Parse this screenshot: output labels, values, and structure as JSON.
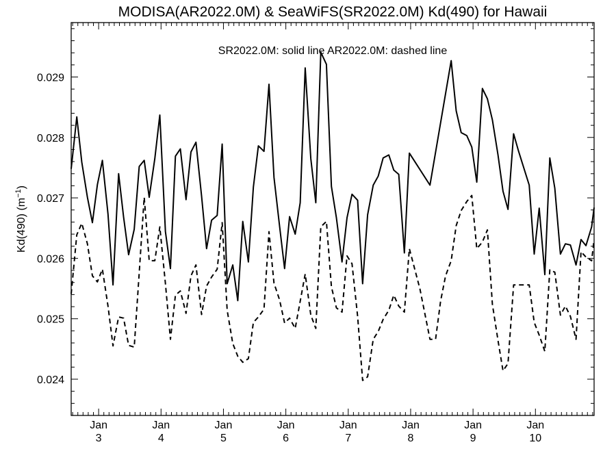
{
  "chart_data": {
    "type": "line",
    "title": "MODISA(AR2022.0M) & SeaWiFS(SR2022.0M)  Kd(490) for Hawaii",
    "annotation": "SR2022.0M: solid line   AR2022.0M: dashed line",
    "ylabel": "Kd(490) (m",
    "ylabel_sup": "−1",
    "ylabel_close": ")",
    "ylim": [
      0.0234,
      0.0299
    ],
    "xlim": [
      2.56,
      10.94
    ],
    "yticks": [
      0.024,
      0.025,
      0.026,
      0.027,
      0.028,
      0.029
    ],
    "ytick_labels": [
      "0.024",
      "0.025",
      "0.026",
      "0.027",
      "0.028",
      "0.029"
    ],
    "xticks": [
      {
        "x": 3,
        "month": "Jan",
        "year": "3"
      },
      {
        "x": 4,
        "month": "Jan",
        "year": "4"
      },
      {
        "x": 5,
        "month": "Jan",
        "year": "5"
      },
      {
        "x": 6,
        "month": "Jan",
        "year": "6"
      },
      {
        "x": 7,
        "month": "Jan",
        "year": "7"
      },
      {
        "x": 8,
        "month": "Jan",
        "year": "8"
      },
      {
        "x": 9,
        "month": "Jan",
        "year": "9"
      },
      {
        "x": 10,
        "month": "Jan",
        "year": "10"
      }
    ],
    "series": [
      {
        "name": "SR2022.0M",
        "style": "solid",
        "color": "#000000",
        "points": [
          [
            2.56,
            0.02748
          ],
          [
            2.65,
            0.02834
          ],
          [
            2.73,
            0.02759
          ],
          [
            2.82,
            0.02701
          ],
          [
            2.9,
            0.02659
          ],
          [
            2.98,
            0.02722
          ],
          [
            3.06,
            0.02762
          ],
          [
            3.15,
            0.02673
          ],
          [
            3.23,
            0.02556
          ],
          [
            3.32,
            0.0274
          ],
          [
            3.4,
            0.02668
          ],
          [
            3.48,
            0.02606
          ],
          [
            3.57,
            0.02648
          ],
          [
            3.65,
            0.02752
          ],
          [
            3.73,
            0.02762
          ],
          [
            3.81,
            0.02701
          ],
          [
            3.9,
            0.02765
          ],
          [
            3.98,
            0.02837
          ],
          [
            4.07,
            0.02644
          ],
          [
            4.15,
            0.02583
          ],
          [
            4.23,
            0.02769
          ],
          [
            4.31,
            0.02781
          ],
          [
            4.4,
            0.02697
          ],
          [
            4.48,
            0.02776
          ],
          [
            4.56,
            0.02792
          ],
          [
            4.65,
            0.02703
          ],
          [
            4.73,
            0.02616
          ],
          [
            4.81,
            0.02663
          ],
          [
            4.9,
            0.02671
          ],
          [
            4.98,
            0.02789
          ],
          [
            5.06,
            0.02558
          ],
          [
            5.15,
            0.02589
          ],
          [
            5.23,
            0.0253
          ],
          [
            5.31,
            0.02661
          ],
          [
            5.4,
            0.02594
          ],
          [
            5.48,
            0.02718
          ],
          [
            5.56,
            0.02786
          ],
          [
            5.65,
            0.02777
          ],
          [
            5.73,
            0.02888
          ],
          [
            5.81,
            0.02734
          ],
          [
            5.9,
            0.02653
          ],
          [
            5.98,
            0.02583
          ],
          [
            6.06,
            0.02669
          ],
          [
            6.15,
            0.0264
          ],
          [
            6.23,
            0.02692
          ],
          [
            6.31,
            0.02915
          ],
          [
            6.4,
            0.02765
          ],
          [
            6.48,
            0.02692
          ],
          [
            6.56,
            0.02941
          ],
          [
            6.65,
            0.02921
          ],
          [
            6.73,
            0.02719
          ],
          [
            6.81,
            0.02667
          ],
          [
            6.9,
            0.02594
          ],
          [
            6.98,
            0.02667
          ],
          [
            7.06,
            0.02706
          ],
          [
            7.15,
            0.02696
          ],
          [
            7.23,
            0.02558
          ],
          [
            7.31,
            0.02672
          ],
          [
            7.4,
            0.02721
          ],
          [
            7.48,
            0.02736
          ],
          [
            7.56,
            0.02766
          ],
          [
            7.65,
            0.02771
          ],
          [
            7.73,
            0.02746
          ],
          [
            7.81,
            0.02739
          ],
          [
            7.9,
            0.02609
          ],
          [
            7.98,
            0.02774
          ],
          [
            8.31,
            0.02721
          ],
          [
            8.65,
            0.02927
          ],
          [
            8.73,
            0.02844
          ],
          [
            8.81,
            0.02808
          ],
          [
            8.9,
            0.02803
          ],
          [
            8.98,
            0.02784
          ],
          [
            9.06,
            0.02726
          ],
          [
            9.15,
            0.02881
          ],
          [
            9.23,
            0.02864
          ],
          [
            9.31,
            0.02829
          ],
          [
            9.4,
            0.02771
          ],
          [
            9.48,
            0.02711
          ],
          [
            9.56,
            0.02681
          ],
          [
            9.65,
            0.02806
          ],
          [
            9.73,
            0.02777
          ],
          [
            9.9,
            0.02721
          ],
          [
            9.98,
            0.02607
          ],
          [
            10.06,
            0.02683
          ],
          [
            10.15,
            0.02573
          ],
          [
            10.23,
            0.02766
          ],
          [
            10.31,
            0.02716
          ],
          [
            10.4,
            0.02607
          ],
          [
            10.48,
            0.02624
          ],
          [
            10.56,
            0.02622
          ],
          [
            10.65,
            0.02589
          ],
          [
            10.73,
            0.02631
          ],
          [
            10.81,
            0.02621
          ],
          [
            10.9,
            0.02652
          ],
          [
            10.94,
            0.02684
          ]
        ]
      },
      {
        "name": "AR2022.0M",
        "style": "dashed",
        "color": "#000000",
        "points": [
          [
            2.56,
            0.02541
          ],
          [
            2.65,
            0.02639
          ],
          [
            2.73,
            0.02658
          ],
          [
            2.82,
            0.02624
          ],
          [
            2.9,
            0.02571
          ],
          [
            2.98,
            0.02561
          ],
          [
            3.06,
            0.02582
          ],
          [
            3.15,
            0.02521
          ],
          [
            3.23,
            0.02455
          ],
          [
            3.32,
            0.02503
          ],
          [
            3.4,
            0.02501
          ],
          [
            3.48,
            0.02456
          ],
          [
            3.57,
            0.02453
          ],
          [
            3.65,
            0.02576
          ],
          [
            3.73,
            0.02701
          ],
          [
            3.81,
            0.02596
          ],
          [
            3.9,
            0.02596
          ],
          [
            3.98,
            0.02652
          ],
          [
            4.07,
            0.02558
          ],
          [
            4.15,
            0.02466
          ],
          [
            4.23,
            0.02539
          ],
          [
            4.31,
            0.02546
          ],
          [
            4.4,
            0.02509
          ],
          [
            4.48,
            0.02571
          ],
          [
            4.56,
            0.02589
          ],
          [
            4.65,
            0.02507
          ],
          [
            4.73,
            0.02554
          ],
          [
            4.81,
            0.02569
          ],
          [
            4.9,
            0.02582
          ],
          [
            4.98,
            0.02659
          ],
          [
            5.06,
            0.02514
          ],
          [
            5.15,
            0.02459
          ],
          [
            5.23,
            0.02438
          ],
          [
            5.31,
            0.02428
          ],
          [
            5.4,
            0.02434
          ],
          [
            5.48,
            0.02494
          ],
          [
            5.56,
            0.02503
          ],
          [
            5.65,
            0.02516
          ],
          [
            5.73,
            0.02644
          ],
          [
            5.81,
            0.02559
          ],
          [
            5.9,
            0.02531
          ],
          [
            5.98,
            0.02493
          ],
          [
            6.06,
            0.02501
          ],
          [
            6.15,
            0.02484
          ],
          [
            6.23,
            0.02529
          ],
          [
            6.31,
            0.02574
          ],
          [
            6.4,
            0.02506
          ],
          [
            6.48,
            0.02484
          ],
          [
            6.56,
            0.02652
          ],
          [
            6.65,
            0.02661
          ],
          [
            6.73,
            0.02553
          ],
          [
            6.81,
            0.02518
          ],
          [
            6.9,
            0.02511
          ],
          [
            6.98,
            0.02604
          ],
          [
            7.06,
            0.02591
          ],
          [
            7.15,
            0.02504
          ],
          [
            7.23,
            0.02398
          ],
          [
            7.31,
            0.02404
          ],
          [
            7.4,
            0.02466
          ],
          [
            7.48,
            0.02479
          ],
          [
            7.56,
            0.02499
          ],
          [
            7.65,
            0.02514
          ],
          [
            7.73,
            0.02539
          ],
          [
            7.81,
            0.02521
          ],
          [
            7.9,
            0.02511
          ],
          [
            7.98,
            0.02616
          ],
          [
            8.15,
            0.02549
          ],
          [
            8.31,
            0.02466
          ],
          [
            8.4,
            0.02466
          ],
          [
            8.48,
            0.02529
          ],
          [
            8.56,
            0.02571
          ],
          [
            8.65,
            0.02596
          ],
          [
            8.73,
            0.02654
          ],
          [
            8.81,
            0.02679
          ],
          [
            8.9,
            0.02694
          ],
          [
            8.98,
            0.02704
          ],
          [
            9.06,
            0.02616
          ],
          [
            9.15,
            0.02627
          ],
          [
            9.23,
            0.02647
          ],
          [
            9.31,
            0.02524
          ],
          [
            9.4,
            0.02464
          ],
          [
            9.48,
            0.02414
          ],
          [
            9.56,
            0.02426
          ],
          [
            9.65,
            0.02556
          ],
          [
            9.9,
            0.02556
          ],
          [
            9.98,
            0.02494
          ],
          [
            10.06,
            0.02473
          ],
          [
            10.15,
            0.02446
          ],
          [
            10.23,
            0.02581
          ],
          [
            10.31,
            0.02577
          ],
          [
            10.4,
            0.02506
          ],
          [
            10.48,
            0.02521
          ],
          [
            10.56,
            0.02504
          ],
          [
            10.65,
            0.02466
          ],
          [
            10.73,
            0.02611
          ],
          [
            10.81,
            0.02602
          ],
          [
            10.9,
            0.02596
          ],
          [
            10.94,
            0.02631
          ]
        ]
      }
    ]
  }
}
